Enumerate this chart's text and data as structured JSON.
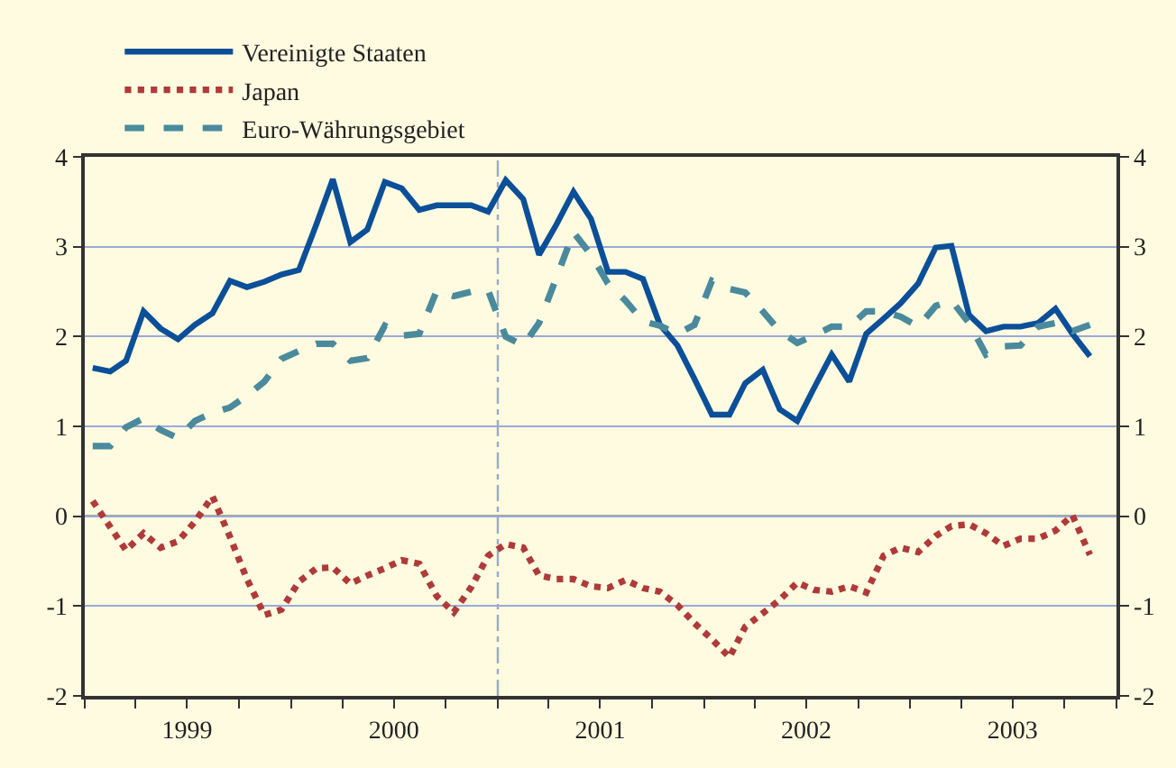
{
  "chart_data": {
    "type": "line",
    "x": [
      "1999-01-15",
      "1999-02-15",
      "1999-03-15",
      "1999-04-15",
      "1999-05-15",
      "1999-06-15",
      "1999-07-15",
      "1999-08-15",
      "1999-09-15",
      "1999-10-15",
      "1999-11-15",
      "1999-12-15",
      "2000-01-15",
      "2000-02-15",
      "2000-03-15",
      "2000-04-15",
      "2000-05-15",
      "2000-06-15",
      "2000-07-15",
      "2000-08-15",
      "2000-09-15",
      "2000-10-15",
      "2000-11-15",
      "2000-12-15",
      "2001-01-15",
      "2001-02-15",
      "2001-03-15",
      "2001-04-15",
      "2001-05-15",
      "2001-06-15",
      "2001-07-15",
      "2001-08-15",
      "2001-09-15",
      "2001-10-15",
      "2001-11-15",
      "2001-12-15",
      "2002-01-15",
      "2002-02-15",
      "2002-03-15",
      "2002-04-15",
      "2002-05-15",
      "2002-06-15",
      "2002-07-15",
      "2002-08-15",
      "2002-09-15",
      "2002-10-15",
      "2002-11-15",
      "2002-12-15",
      "2003-01-15",
      "2003-02-15",
      "2003-03-15",
      "2003-04-15",
      "2003-05-15",
      "2003-06-15",
      "2003-07-15",
      "2003-08-15",
      "2003-09-15",
      "2003-10-15",
      "2003-11-15"
    ],
    "series": [
      {
        "name": "Vereinigte Staaten",
        "color": "#0b4f98",
        "line_style": "solid",
        "values": [
          1.65,
          1.61,
          1.73,
          2.28,
          2.09,
          1.97,
          2.13,
          2.26,
          2.62,
          2.55,
          2.61,
          2.69,
          2.74,
          3.25,
          3.75,
          3.05,
          3.19,
          3.72,
          3.65,
          3.41,
          3.46,
          3.46,
          3.46,
          3.39,
          3.74,
          3.53,
          2.91,
          3.25,
          3.61,
          3.31,
          2.72,
          2.72,
          2.64,
          2.13,
          1.9,
          1.53,
          1.13,
          1.13,
          1.48,
          1.63,
          1.19,
          1.06,
          1.43,
          1.8,
          1.5,
          2.03,
          2.2,
          2.37,
          2.59,
          2.99,
          3.01,
          2.24,
          2.06,
          2.11,
          2.11,
          2.15,
          2.31,
          2.03,
          1.78
        ]
      },
      {
        "name": "Japan",
        "color": "#b03a3a",
        "line_style": "dotted",
        "values": [
          0.17,
          -0.12,
          -0.38,
          -0.19,
          -0.35,
          -0.28,
          -0.06,
          0.22,
          -0.23,
          -0.7,
          -1.1,
          -1.04,
          -0.73,
          -0.58,
          -0.57,
          -0.75,
          -0.66,
          -0.58,
          -0.49,
          -0.53,
          -0.89,
          -1.07,
          -0.79,
          -0.44,
          -0.31,
          -0.35,
          -0.66,
          -0.7,
          -0.7,
          -0.78,
          -0.8,
          -0.71,
          -0.8,
          -0.84,
          -0.99,
          -1.19,
          -1.37,
          -1.57,
          -1.23,
          -1.08,
          -0.93,
          -0.74,
          -0.82,
          -0.84,
          -0.78,
          -0.85,
          -0.44,
          -0.35,
          -0.4,
          -0.22,
          -0.11,
          -0.09,
          -0.19,
          -0.33,
          -0.25,
          -0.25,
          -0.16,
          0.01,
          -0.43
        ]
      },
      {
        "name": "Euro-Währungsgebiet",
        "color": "#4a8a9c",
        "line_style": "dashed",
        "values": [
          0.78,
          0.78,
          0.99,
          1.09,
          0.96,
          0.87,
          1.06,
          1.15,
          1.21,
          1.34,
          1.5,
          1.75,
          1.84,
          1.92,
          1.92,
          1.73,
          1.76,
          2.12,
          2.01,
          2.03,
          2.51,
          2.45,
          2.5,
          2.51,
          2.0,
          1.9,
          2.15,
          2.66,
          3.16,
          2.91,
          2.59,
          2.4,
          2.17,
          2.12,
          2.03,
          2.13,
          2.62,
          2.53,
          2.49,
          2.28,
          2.06,
          1.93,
          2.01,
          2.11,
          2.11,
          2.28,
          2.28,
          2.22,
          2.11,
          2.34,
          2.4,
          2.15,
          1.8,
          1.89,
          1.9,
          2.11,
          2.15,
          2.06,
          2.13
        ]
      }
    ],
    "xlim": [
      "1999-01-01",
      "2004-01-01"
    ],
    "xticks": [
      {
        "value": "1999-01-01",
        "label": null
      },
      {
        "value": "1999-04-01",
        "label": null
      },
      {
        "value": "1999-07-01",
        "label": "1999"
      },
      {
        "value": "1999-10-01",
        "label": null
      },
      {
        "value": "2000-01-01",
        "label": null
      },
      {
        "value": "2000-04-01",
        "label": null
      },
      {
        "value": "2000-07-01",
        "label": "2000"
      },
      {
        "value": "2000-10-01",
        "label": null
      },
      {
        "value": "2001-01-01",
        "label": null
      },
      {
        "value": "2001-04-01",
        "label": null
      },
      {
        "value": "2001-07-01",
        "label": "2001"
      },
      {
        "value": "2001-10-01",
        "label": null
      },
      {
        "value": "2002-01-01",
        "label": null
      },
      {
        "value": "2002-04-01",
        "label": null
      },
      {
        "value": "2002-07-01",
        "label": "2002"
      },
      {
        "value": "2002-10-01",
        "label": null
      },
      {
        "value": "2003-01-01",
        "label": null
      },
      {
        "value": "2003-04-01",
        "label": null
      },
      {
        "value": "2003-07-01",
        "label": "2003"
      },
      {
        "value": "2003-10-01",
        "label": null
      },
      {
        "value": "2004-01-01",
        "label": null
      }
    ],
    "ylim": [
      -2,
      4
    ],
    "yticks": [
      -2,
      -1,
      0,
      1,
      2,
      3,
      4
    ],
    "y2lim": [
      -2,
      4
    ],
    "y2ticks": [
      -2,
      -1,
      0,
      1,
      2,
      3,
      4
    ],
    "ref_lines": [
      {
        "axis": "x",
        "value": "2001-01-01",
        "color": "#9aaac8",
        "line_style": "dashdot"
      },
      {
        "axis": "y",
        "value": 0,
        "color": "#555555",
        "line_style": "solid"
      }
    ],
    "grid": "y",
    "legend": "top left",
    "marker": "none"
  }
}
